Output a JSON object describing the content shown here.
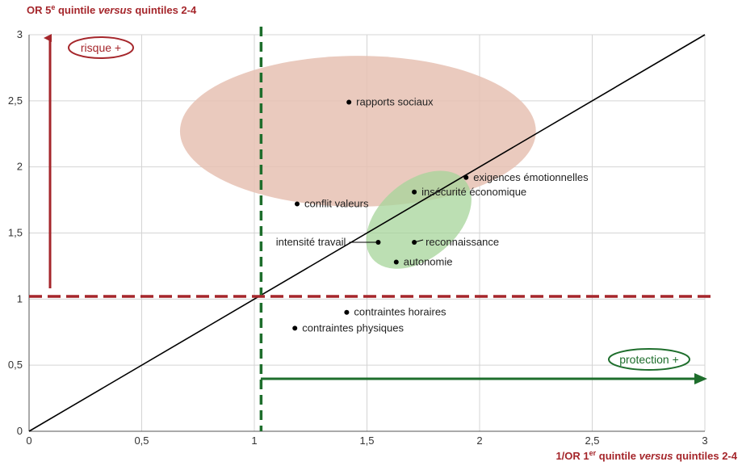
{
  "chart_data": {
    "type": "scatter",
    "title": "",
    "ylabel": "OR 5e quintile versus quintiles 2-4",
    "ylabel_parts": {
      "a": "OR 5",
      "sup": "e",
      "b": " quintile ",
      "em": "versus",
      "c": " quintiles 2-4"
    },
    "xlabel": "1/OR 1er quintile versus quintiles 2-4",
    "xlabel_parts": {
      "a": "1/OR  1",
      "sup": "er",
      "b": " quintile ",
      "em": "versus",
      "c": " quintiles 2-4"
    },
    "xlim": [
      0,
      3
    ],
    "ylim": [
      0,
      3
    ],
    "x_ticks": [
      0,
      0.5,
      1,
      1.5,
      2,
      2.5,
      3
    ],
    "x_tick_labels": [
      "0",
      "0,5",
      "1",
      "1,5",
      "2",
      "2,5",
      "3"
    ],
    "y_ticks": [
      0,
      0.5,
      1,
      1.5,
      2,
      2.5,
      3
    ],
    "y_tick_labels": [
      "0",
      "0,5",
      "1",
      "1,5",
      "2",
      "2,5",
      "3"
    ],
    "grid": true,
    "points": [
      {
        "label": "rapports sociaux",
        "x": 1.42,
        "y": 2.49,
        "align": "right"
      },
      {
        "label": "exigences émotionnelles",
        "x": 1.94,
        "y": 1.92,
        "align": "right"
      },
      {
        "label": "insécurité économique",
        "x": 1.71,
        "y": 1.81,
        "align": "right"
      },
      {
        "label": "conflit valeurs",
        "x": 1.19,
        "y": 1.72,
        "align": "right"
      },
      {
        "label": "intensité travail",
        "x": 1.55,
        "y": 1.43,
        "align": "left-leader"
      },
      {
        "label": "reconnaissance",
        "x": 1.71,
        "y": 1.43,
        "align": "right-leader"
      },
      {
        "label": "autonomie",
        "x": 1.63,
        "y": 1.28,
        "align": "right"
      },
      {
        "label": "contraintes horaires",
        "x": 1.41,
        "y": 0.9,
        "align": "right"
      },
      {
        "label": "contraintes physiques",
        "x": 1.18,
        "y": 0.78,
        "align": "right"
      }
    ],
    "reference_lines": {
      "diagonal": [
        [
          0,
          0
        ],
        [
          3,
          3
        ]
      ],
      "vertical_x": 1.03,
      "horizontal_y": 1.02
    },
    "annotations": {
      "risque": "risque +",
      "protection": "protection +"
    },
    "colors": {
      "risk": "#a5262b",
      "protection": "#1e6e2c",
      "pink_zone": "#e6c1b3",
      "green_zone": "#a6d49a",
      "grid": "#d4d4d4"
    }
  }
}
